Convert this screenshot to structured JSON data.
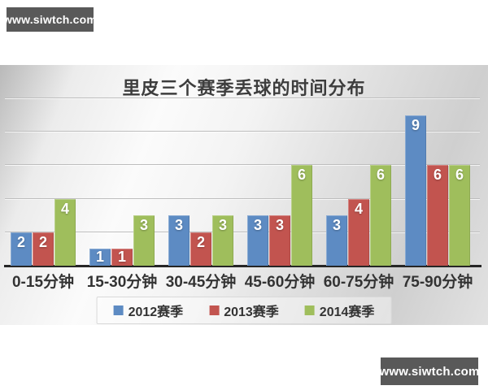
{
  "watermark_top": {
    "text": "www.siwtch.com"
  },
  "watermark_bottom": {
    "text": "www.siwtch.com"
  },
  "chart_data": {
    "type": "bar",
    "title": "里皮三个赛季丢球的时间分布",
    "categories": [
      "0-15分钟",
      "15-30分钟",
      "30-45分钟",
      "45-60分钟",
      "60-75分钟",
      "75-90分钟"
    ],
    "series": [
      {
        "name": "2012赛季",
        "color": "#5d8bc3",
        "values": [
          2,
          1,
          3,
          3,
          3,
          9
        ]
      },
      {
        "name": "2013赛季",
        "color": "#c2544f",
        "values": [
          2,
          1,
          2,
          3,
          4,
          6
        ]
      },
      {
        "name": "2014赛季",
        "color": "#9fbe5c",
        "values": [
          4,
          3,
          3,
          6,
          6,
          6
        ]
      }
    ],
    "xlabel": "",
    "ylabel": "",
    "ylim": [
      0,
      10
    ],
    "gridline_values": [
      2,
      4,
      6,
      8,
      10
    ],
    "grid": true,
    "legend_position": "bottom",
    "data_labels": true
  }
}
